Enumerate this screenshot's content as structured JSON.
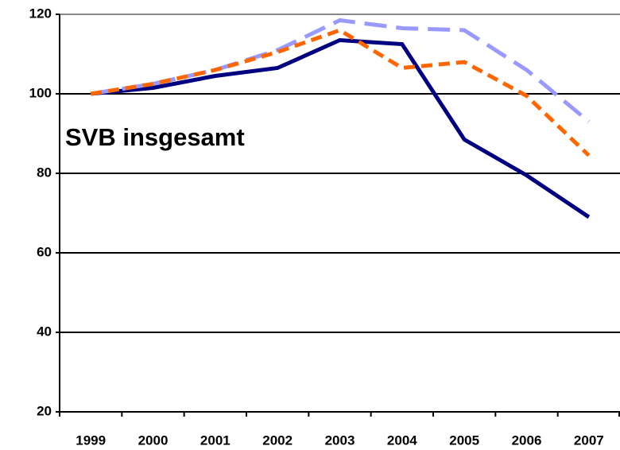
{
  "chart_data": {
    "type": "line",
    "annotations": [
      "SVB insgesamt"
    ],
    "categories": [
      "1999",
      "2000",
      "2001",
      "2002",
      "2003",
      "2004",
      "2005",
      "2006",
      "2007"
    ],
    "series": [
      {
        "color": "#000080",
        "dash": "solid",
        "values": [
          100,
          101.5,
          104.5,
          106.5,
          113.5,
          112.5,
          88.5,
          79.5,
          69
        ]
      },
      {
        "color": "#9999ff",
        "dash": "long",
        "values": [
          100,
          102.5,
          106,
          111,
          118.5,
          116.5,
          116,
          106,
          93
        ]
      },
      {
        "color": "#ff6600",
        "dash": "short",
        "values": [
          100,
          102.5,
          106,
          110.5,
          116,
          106.5,
          108,
          99.5,
          84.5
        ]
      }
    ],
    "ylim": [
      20,
      120
    ],
    "yticks": [
      20,
      40,
      60,
      80,
      100,
      120
    ],
    "grid": true
  }
}
